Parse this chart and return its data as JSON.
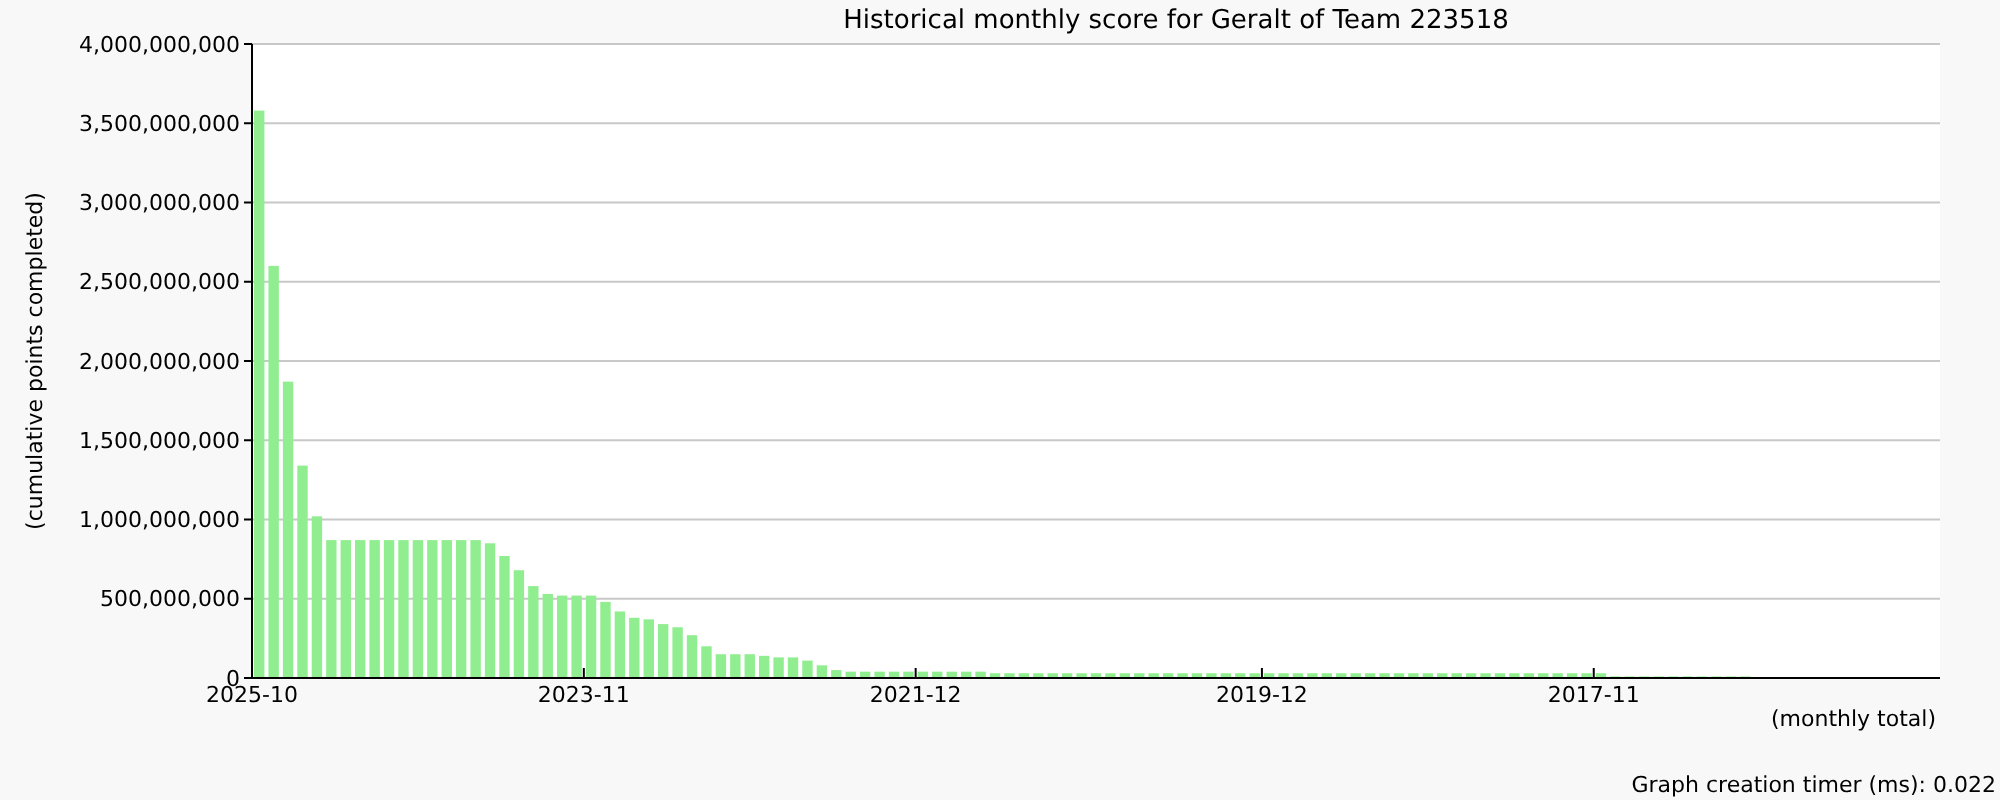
{
  "chart_data": {
    "type": "bar",
    "title": "Historical monthly score for Geralt of Team 223518",
    "xlabel": "(monthly total)",
    "ylabel": "(cumulative points completed)",
    "annotations": [
      "Graph creation timer (ms): 0.022"
    ],
    "categories": [
      "2025-10",
      null,
      null,
      null,
      null,
      null,
      null,
      null,
      null,
      null,
      null,
      null,
      null,
      null,
      null,
      null,
      null,
      null,
      null,
      null,
      null,
      null,
      null,
      "2023-11",
      null,
      null,
      null,
      null,
      null,
      null,
      null,
      null,
      null,
      null,
      null,
      null,
      null,
      null,
      null,
      null,
      null,
      null,
      null,
      null,
      null,
      null,
      "2021-12",
      null,
      null,
      null,
      null,
      null,
      null,
      null,
      null,
      null,
      null,
      null,
      null,
      null,
      null,
      null,
      null,
      null,
      null,
      null,
      null,
      null,
      null,
      null,
      "2019-12",
      null,
      null,
      null,
      null,
      null,
      null,
      null,
      null,
      null,
      null,
      null,
      null,
      null,
      null,
      null,
      null,
      null,
      null,
      null,
      null,
      null,
      null,
      "2017-11",
      null,
      null,
      null,
      null,
      null,
      null,
      null,
      null,
      null,
      null,
      null,
      null,
      null,
      null,
      null,
      null,
      null,
      null,
      null,
      null,
      null,
      null,
      null
    ],
    "values": [
      3580000000,
      2600000000,
      1870000000,
      1340000000,
      1020000000,
      870000000,
      870000000,
      870000000,
      870000000,
      870000000,
      870000000,
      870000000,
      870000000,
      870000000,
      870000000,
      870000000,
      850000000,
      770000000,
      680000000,
      580000000,
      530000000,
      520000000,
      520000000,
      520000000,
      480000000,
      420000000,
      380000000,
      370000000,
      340000000,
      320000000,
      270000000,
      200000000,
      150000000,
      150000000,
      150000000,
      140000000,
      130000000,
      130000000,
      110000000,
      80000000,
      50000000,
      40000000,
      40000000,
      40000000,
      40000000,
      40000000,
      40000000,
      40000000,
      40000000,
      40000000,
      40000000,
      30000000,
      30000000,
      30000000,
      30000000,
      30000000,
      30000000,
      30000000,
      30000000,
      30000000,
      30000000,
      30000000,
      30000000,
      30000000,
      30000000,
      30000000,
      30000000,
      30000000,
      30000000,
      30000000,
      30000000,
      30000000,
      30000000,
      30000000,
      30000000,
      30000000,
      30000000,
      30000000,
      30000000,
      30000000,
      30000000,
      30000000,
      30000000,
      30000000,
      30000000,
      30000000,
      30000000,
      30000000,
      30000000,
      30000000,
      30000000,
      30000000,
      30000000,
      30000000,
      10000000,
      10000000,
      10000000,
      10000000,
      10000000,
      10000000,
      10000000,
      10000000,
      10000000,
      10000000,
      null,
      null,
      null,
      null,
      null,
      null,
      null,
      null,
      null,
      null,
      null,
      null,
      null
    ],
    "color": "#90ee90",
    "ylim": [
      0,
      4000000000
    ],
    "yticks": [
      {
        "value": 0,
        "label": "0"
      },
      {
        "value": 500000000,
        "label": "500,000,000"
      },
      {
        "value": 1000000000,
        "label": "1,000,000,000"
      },
      {
        "value": 1500000000,
        "label": "1,500,000,000"
      },
      {
        "value": 2000000000,
        "label": "2,000,000,000"
      },
      {
        "value": 2500000000,
        "label": "2,500,000,000"
      },
      {
        "value": 3000000000,
        "label": "3,000,000,000"
      },
      {
        "value": 3500000000,
        "label": "3,500,000,000"
      },
      {
        "value": 4000000000,
        "label": "4,000,000,000"
      }
    ],
    "grid": "y"
  }
}
